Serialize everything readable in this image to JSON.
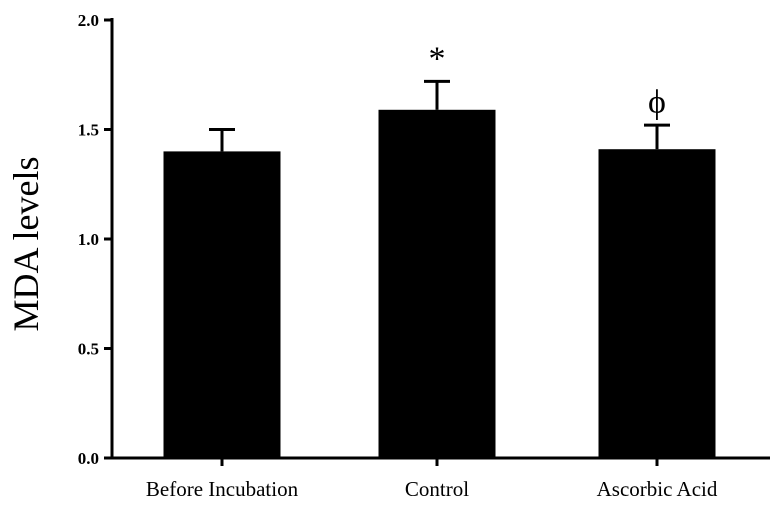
{
  "chart_data": {
    "type": "bar",
    "categories": [
      "Before Incubation",
      "Control",
      "Ascorbic Acid"
    ],
    "values": [
      1.4,
      1.59,
      1.41
    ],
    "errors": [
      0.1,
      0.13,
      0.11
    ],
    "annotations": [
      "",
      "*",
      "ϕ"
    ],
    "xlabel": "",
    "ylabel": "MDA levels",
    "ylim": [
      0,
      2.0
    ],
    "yticks": [
      "0.0",
      "0.5",
      "1.0",
      "1.5",
      "2.0"
    ],
    "grid": false,
    "bar_color": "#000000"
  }
}
